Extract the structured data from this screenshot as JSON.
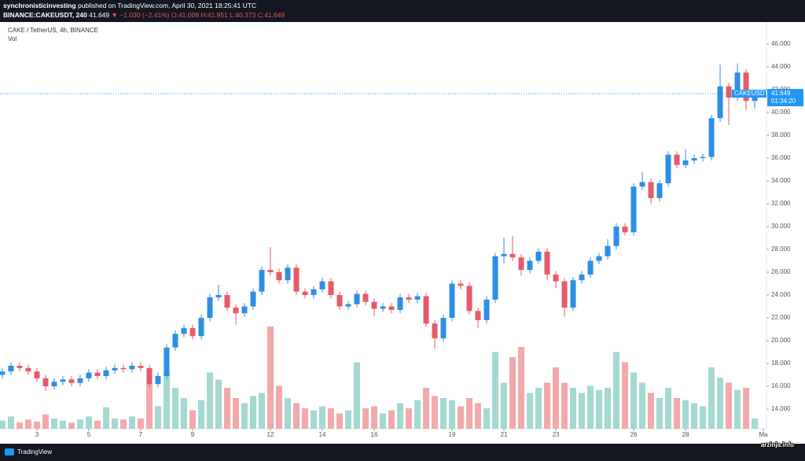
{
  "header": {
    "publisher": "synchronisticinvesting",
    "published": "published on TradingView.com, April 30, 2021 18:25:41 UTC",
    "symbol": "BINANCE:CAKEUSDT, 240",
    "price": "41.649",
    "change": "▼ −1.030 (−2.41%)",
    "ohlc": [
      "O:41.008",
      "H:41.951",
      "L:40.373",
      "C:41.649"
    ]
  },
  "chart_data": {
    "type": "candlestick",
    "title": "CAKE / TetherUS, 4h, BINANCE",
    "volume_label": "Vol",
    "symbol_tag": "CAKEUSDT",
    "countdown": "01:34:20",
    "up_color": "#2e8ee3",
    "down_color": "#e55b6a",
    "volume_up_color": "#a3d9d1",
    "volume_down_color": "#f3a9ab",
    "price_tag_color": "#2196f3",
    "open": [
      17.0,
      17.3,
      17.8,
      17.6,
      17.3,
      16.7,
      16.0,
      16.4,
      16.6,
      16.3,
      16.7,
      17.2,
      16.9,
      17.4,
      17.6,
      17.5,
      17.8,
      17.6,
      16.2,
      16.9,
      19.4,
      20.6,
      21.1,
      20.4,
      22.0,
      23.8,
      24.0,
      22.9,
      22.4,
      23.0,
      24.3,
      26.2,
      26.0,
      25.3,
      26.4,
      24.3,
      24.0,
      24.5,
      25.2,
      24.0,
      23.0,
      23.2,
      24.1,
      23.4,
      22.8,
      23.0,
      22.7,
      23.8,
      23.6,
      23.9,
      21.5,
      20.2,
      22.0,
      25.0,
      24.8,
      22.6,
      21.8,
      23.6,
      27.4,
      27.6,
      27.3,
      26.2,
      27.0,
      27.8,
      25.8,
      25.2,
      22.9,
      25.3,
      25.8,
      27.0,
      27.4,
      28.3,
      30.0,
      29.5,
      33.5,
      33.9,
      32.5,
      33.8,
      36.3,
      35.4,
      35.8,
      36.0,
      36.1,
      39.5,
      42.3,
      41.3,
      43.5,
      41.008
    ],
    "high": [
      17.6,
      18.1,
      18.1,
      17.9,
      17.6,
      17.0,
      16.7,
      16.9,
      16.9,
      17.0,
      17.5,
      17.5,
      17.7,
      17.9,
      17.9,
      18.1,
      18.1,
      17.9,
      17.2,
      19.7,
      20.9,
      21.4,
      21.4,
      22.3,
      24.1,
      24.9,
      24.3,
      23.2,
      23.3,
      24.6,
      26.5,
      28.2,
      26.3,
      26.7,
      26.7,
      24.6,
      24.8,
      25.5,
      25.5,
      24.3,
      23.5,
      24.4,
      24.4,
      23.7,
      23.3,
      23.3,
      24.1,
      24.1,
      24.2,
      24.2,
      21.8,
      22.3,
      25.3,
      25.3,
      25.1,
      22.9,
      23.9,
      27.7,
      29.0,
      29.2,
      27.6,
      27.3,
      28.1,
      28.1,
      26.1,
      25.5,
      25.6,
      26.1,
      27.3,
      27.7,
      28.9,
      30.3,
      30.3,
      33.8,
      34.8,
      34.2,
      34.1,
      36.6,
      36.6,
      36.8,
      36.3,
      36.4,
      39.8,
      44.2,
      42.6,
      44.3,
      43.8,
      41.951
    ],
    "low": [
      16.7,
      17.0,
      17.3,
      17.0,
      16.4,
      15.6,
      15.7,
      16.1,
      16.0,
      16.0,
      16.4,
      16.6,
      16.6,
      17.1,
      17.2,
      17.2,
      17.3,
      15.9,
      15.9,
      16.6,
      19.1,
      20.3,
      20.1,
      20.1,
      21.7,
      23.5,
      22.6,
      21.4,
      22.1,
      22.7,
      24.0,
      25.7,
      25.0,
      25.0,
      24.0,
      23.7,
      23.7,
      24.2,
      23.7,
      22.7,
      22.7,
      22.9,
      23.1,
      22.2,
      22.5,
      22.4,
      22.4,
      23.3,
      23.3,
      21.2,
      19.3,
      19.9,
      21.7,
      24.5,
      22.3,
      21.1,
      21.5,
      23.3,
      26.8,
      27.0,
      25.7,
      25.9,
      26.7,
      25.3,
      24.6,
      22.1,
      22.6,
      25.0,
      25.5,
      26.7,
      27.1,
      28.0,
      29.2,
      29.2,
      33.2,
      32.0,
      32.2,
      33.5,
      35.1,
      35.1,
      35.5,
      35.7,
      35.8,
      39.2,
      38.9,
      41.0,
      40.2,
      40.373
    ],
    "close": [
      17.3,
      17.8,
      17.6,
      17.3,
      16.7,
      16.0,
      16.4,
      16.6,
      16.3,
      16.7,
      17.2,
      16.9,
      17.4,
      17.6,
      17.5,
      17.8,
      17.6,
      16.2,
      16.9,
      19.4,
      20.6,
      21.1,
      20.4,
      22.0,
      23.8,
      24.0,
      22.9,
      22.4,
      23.0,
      24.3,
      26.2,
      26.0,
      25.3,
      26.4,
      24.3,
      24.0,
      24.5,
      25.2,
      24.0,
      23.0,
      23.2,
      24.1,
      23.4,
      22.8,
      23.0,
      22.7,
      23.8,
      23.6,
      23.9,
      21.5,
      20.2,
      22.0,
      25.0,
      24.8,
      22.6,
      21.8,
      23.6,
      27.4,
      27.6,
      27.3,
      26.2,
      27.0,
      27.8,
      25.8,
      25.2,
      22.9,
      25.3,
      25.8,
      27.0,
      27.4,
      28.3,
      30.0,
      29.5,
      33.5,
      33.9,
      32.5,
      33.8,
      36.3,
      35.4,
      35.8,
      36.0,
      36.1,
      39.5,
      42.3,
      41.3,
      43.5,
      41.008,
      41.649
    ],
    "volume": [
      8,
      12,
      6,
      9,
      7,
      14,
      10,
      8,
      6,
      9,
      12,
      8,
      21,
      10,
      9,
      12,
      10,
      45,
      22,
      55,
      40,
      30,
      18,
      28,
      55,
      48,
      40,
      30,
      25,
      32,
      35,
      100,
      42,
      30,
      25,
      20,
      18,
      22,
      20,
      15,
      18,
      65,
      20,
      22,
      15,
      18,
      25,
      20,
      28,
      40,
      32,
      30,
      28,
      22,
      30,
      25,
      20,
      75,
      45,
      70,
      80,
      35,
      40,
      45,
      60,
      45,
      40,
      35,
      42,
      38,
      40,
      75,
      65,
      55,
      45,
      35,
      30,
      40,
      30,
      28,
      25,
      22,
      60,
      50,
      45,
      38,
      40,
      10
    ],
    "xlim": [
      -0.27,
      88.36
    ],
    "xticks": [
      {
        "value": 4,
        "label": "3"
      },
      {
        "value": 10,
        "label": "5"
      },
      {
        "value": 16,
        "label": "7"
      },
      {
        "value": 22,
        "label": "9"
      },
      {
        "value": 31,
        "label": "12"
      },
      {
        "value": 37,
        "label": "14"
      },
      {
        "value": 43,
        "label": "16"
      },
      {
        "value": 52,
        "label": "19"
      },
      {
        "value": 58,
        "label": "21"
      },
      {
        "value": 64,
        "label": "23"
      },
      {
        "value": 73,
        "label": "26"
      },
      {
        "value": 79,
        "label": "28"
      },
      {
        "value": 88,
        "label": "Ma"
      }
    ],
    "ylim": [
      12.28,
      47.93
    ],
    "yticks": [
      {
        "value": 14,
        "label": "14.000"
      },
      {
        "value": 16,
        "label": "16.000"
      },
      {
        "value": 18,
        "label": "18.000"
      },
      {
        "value": 20,
        "label": "20.000"
      },
      {
        "value": 22,
        "label": "22.000"
      },
      {
        "value": 24,
        "label": "24.000"
      },
      {
        "value": 26,
        "label": "26.000"
      },
      {
        "value": 28,
        "label": "28.000"
      },
      {
        "value": 30,
        "label": "30.000"
      },
      {
        "value": 32,
        "label": "32.000"
      },
      {
        "value": 34,
        "label": "34.000"
      },
      {
        "value": 36,
        "label": "36.000"
      },
      {
        "value": 38,
        "label": "38.000"
      },
      {
        "value": 40,
        "label": "40.000"
      },
      {
        "value": 42,
        "label": "42.000"
      },
      {
        "value": 44,
        "label": "44.000"
      },
      {
        "value": 46,
        "label": "46.000"
      }
    ]
  },
  "footer": {
    "brand": "TradingView"
  },
  "watermark": "arzinja.info"
}
